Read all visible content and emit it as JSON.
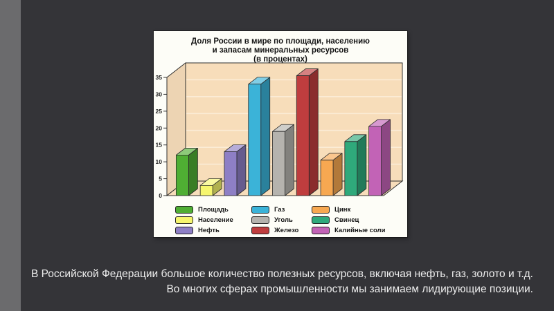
{
  "slide": {
    "background_color": "#343438",
    "left_strip_color": "#6b6b6d",
    "caption": {
      "line1": "В Российской Федерации большое количество полезных ресурсов, включая нефть, газ, золото и т.д.",
      "line2": "Во многих сферах промышленности мы занимаем лидирующие позиции.",
      "color": "#ededed"
    }
  },
  "chart_data": {
    "type": "bar",
    "style": "3d-column",
    "title": "Доля России в мире по площади, населению и запасам минеральных ресурсов (в процентах)",
    "title_lines": {
      "0": "Доля России в мире по площади, населению",
      "1": "и запасам минеральных ресурсов",
      "2": "(в процентах)"
    },
    "categories": [
      "Площадь",
      "Население",
      "Нефть",
      "Газ",
      "Уголь",
      "Железо",
      "Цинк",
      "Свинец",
      "Калийные соли"
    ],
    "values": [
      12,
      3,
      13,
      33,
      19,
      35.5,
      10.5,
      16,
      20.5
    ],
    "colors": [
      "#4fae33",
      "#f6f66e",
      "#8e7fc5",
      "#3bb3d8",
      "#b5b3ae",
      "#bf3d3e",
      "#f7a851",
      "#2fa97b",
      "#c263b6"
    ],
    "ylabel": "",
    "xlabel": "",
    "ylim": [
      0,
      35
    ],
    "yticks": [
      0,
      5,
      10,
      15,
      20,
      25,
      30,
      35
    ],
    "grid": "horizontal",
    "plot_bg": "#f7ddba",
    "grid_color": "#fbecd6",
    "frame_color": "#2e2e2e",
    "legend_position": "bottom",
    "legend_columns": 3
  }
}
